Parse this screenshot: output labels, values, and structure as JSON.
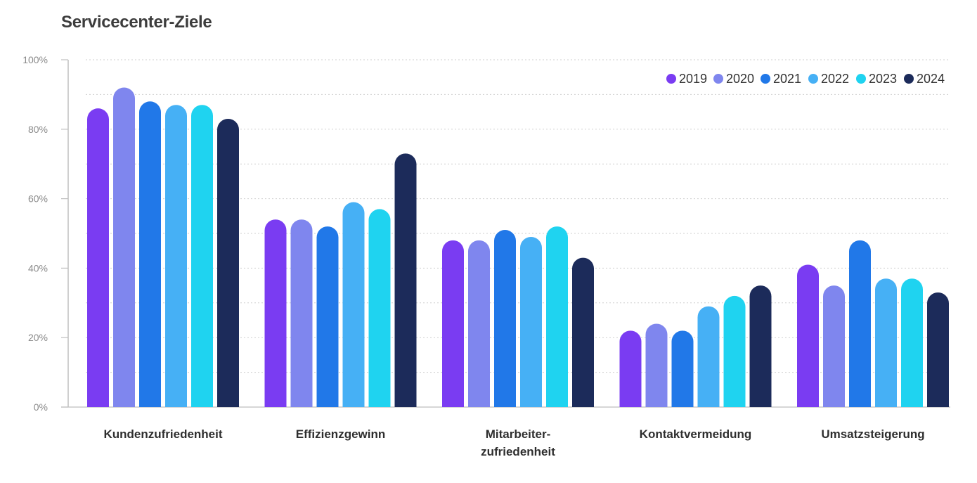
{
  "chart_data": {
    "type": "bar",
    "title": "Servicecenter-Ziele",
    "xlabel": "",
    "ylabel": "",
    "ylim": [
      0,
      100
    ],
    "yticks": [
      "0%",
      "20%",
      "40%",
      "60%",
      "80%",
      "100%"
    ],
    "ytick_values": [
      0,
      20,
      40,
      60,
      80,
      100
    ],
    "grid": true,
    "legend_position": "top-right",
    "categories": [
      [
        "Kundenzufriedenheit"
      ],
      [
        "Effizienzgewinn"
      ],
      [
        "Mitarbeiter-",
        "zufriedenheit"
      ],
      [
        "Kontaktvermeidung"
      ],
      [
        "Umsatzsteigerung"
      ]
    ],
    "series": [
      {
        "name": "2019",
        "color": "#7a3cf2",
        "values": [
          86,
          54,
          48,
          22,
          41
        ]
      },
      {
        "name": "2020",
        "color": "#7f86ee",
        "values": [
          92,
          54,
          48,
          24,
          35
        ]
      },
      {
        "name": "2021",
        "color": "#2178e8",
        "values": [
          88,
          52,
          51,
          22,
          48
        ]
      },
      {
        "name": "2022",
        "color": "#46b0f5",
        "values": [
          87,
          59,
          49,
          29,
          37
        ]
      },
      {
        "name": "2023",
        "color": "#1fd3f0",
        "values": [
          87,
          57,
          52,
          32,
          37
        ]
      },
      {
        "name": "2024",
        "color": "#1c2b5a",
        "values": [
          83,
          73,
          43,
          35,
          33
        ]
      }
    ]
  }
}
